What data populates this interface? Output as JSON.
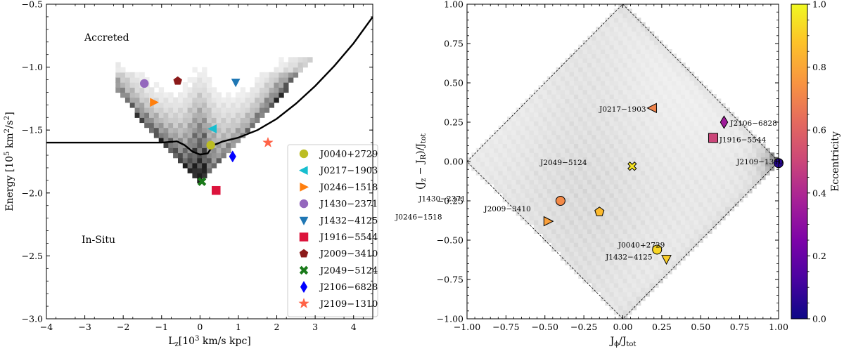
{
  "chart_data": [
    {
      "type": "scatter",
      "xlabel": "L_z[10^3 km/s kpc]",
      "ylabel": "Energy [10^5 km^2/s^2]",
      "xlim": [
        -4,
        4.5
      ],
      "ylim": [
        -3.0,
        -0.5
      ],
      "xticks": [
        "−4",
        "−3",
        "−2",
        "−1",
        "0",
        "1",
        "2",
        "3",
        "4"
      ],
      "yticks": [
        "−3.0",
        "−2.5",
        "−2.0",
        "−1.5",
        "−1.0",
        "−0.5"
      ],
      "regions": [
        "Accreted",
        "In-Situ"
      ],
      "boundary": {
        "x": [
          -4.0,
          -2.0,
          -1.0,
          -0.6,
          -0.4,
          -0.2,
          0.0,
          0.2,
          0.35,
          0.6,
          1.0,
          1.5,
          2.0,
          2.5,
          3.0,
          3.5,
          4.0,
          4.5
        ],
        "y": [
          -1.6,
          -1.6,
          -1.6,
          -1.59,
          -1.62,
          -1.67,
          -1.695,
          -1.685,
          -1.62,
          -1.59,
          -1.56,
          -1.5,
          -1.41,
          -1.29,
          -1.15,
          -0.99,
          -0.81,
          -0.6
        ]
      },
      "stars": [
        {
          "name": "J0040+2729",
          "lz": 0.28,
          "energy": -1.62,
          "marker": "circle",
          "color": "#bcbd22"
        },
        {
          "name": "J0217−1903",
          "lz": 0.33,
          "energy": -1.49,
          "marker": "triangle-left",
          "color": "#17becf"
        },
        {
          "name": "J0246−1518",
          "lz": -1.2,
          "energy": -1.28,
          "marker": "triangle-right",
          "color": "#ff7f0e"
        },
        {
          "name": "J1430−2371",
          "lz": -1.45,
          "energy": -1.13,
          "marker": "circle",
          "color": "#9467bd"
        },
        {
          "name": "J1432−4125",
          "lz": 0.93,
          "energy": -1.12,
          "marker": "triangle-down",
          "color": "#1f77b4"
        },
        {
          "name": "J1916−5544",
          "lz": 0.42,
          "energy": -1.98,
          "marker": "square",
          "color": "#dc143c"
        },
        {
          "name": "J2009−3410",
          "lz": -0.58,
          "energy": -1.11,
          "marker": "pentagon",
          "color": "#8b1a1a"
        },
        {
          "name": "J2049−5124",
          "lz": 0.05,
          "energy": -1.91,
          "marker": "x",
          "color": "#1a7a1a"
        },
        {
          "name": "J2106−6828",
          "lz": 0.85,
          "energy": -1.71,
          "marker": "diamond",
          "color": "#0000ff"
        },
        {
          "name": "J2109−1310",
          "lz": 1.77,
          "energy": -1.6,
          "marker": "star",
          "color": "#ff6347"
        }
      ]
    },
    {
      "type": "scatter",
      "xlabel": "J_phi/J_tot",
      "ylabel": "(J_z − J_R)/J_tot",
      "xlim": [
        -1.0,
        1.0
      ],
      "ylim": [
        -1.0,
        1.0
      ],
      "xticks": [
        "−1.00",
        "−0.75",
        "−0.50",
        "−0.25",
        "0.00",
        "0.25",
        "0.50",
        "0.75",
        "1.00"
      ],
      "yticks": [
        "−1.00",
        "−0.75",
        "−0.50",
        "−0.25",
        "0.00",
        "0.25",
        "0.50",
        "0.75",
        "1.00"
      ],
      "colorbar": {
        "label": "Eccentricity",
        "range": [
          0,
          1
        ],
        "ticks": [
          "0.0",
          "0.2",
          "0.4",
          "0.6",
          "0.8",
          "1.0"
        ]
      },
      "stars": [
        {
          "name": "J0217−1903",
          "jphi": 0.19,
          "jdiff": 0.34,
          "marker": "triangle-left",
          "ecc": 0.7
        },
        {
          "name": "J2106−6828",
          "jphi": 0.65,
          "jdiff": 0.25,
          "marker": "diamond",
          "ecc": 0.35
        },
        {
          "name": "J1916−5544",
          "jphi": 0.58,
          "jdiff": 0.15,
          "marker": "square",
          "ecc": 0.5
        },
        {
          "name": "J2109−1310",
          "jphi": 1.0,
          "jdiff": -0.01,
          "marker": "circle",
          "ecc": 0.05
        },
        {
          "name": "J2049−5124",
          "jphi": 0.06,
          "jdiff": -0.03,
          "marker": "x",
          "ecc": 0.95
        },
        {
          "name": "J1430−2371",
          "jphi": -0.4,
          "jdiff": -0.25,
          "marker": "circle",
          "ecc": 0.72
        },
        {
          "name": "J2009−3410",
          "jphi": -0.15,
          "jdiff": -0.32,
          "marker": "pentagon",
          "ecc": 0.85
        },
        {
          "name": "J0246−1518",
          "jphi": -0.48,
          "jdiff": -0.38,
          "marker": "triangle-right",
          "ecc": 0.78
        },
        {
          "name": "J0040+2729",
          "jphi": 0.22,
          "jdiff": -0.56,
          "marker": "circle",
          "ecc": 0.92
        },
        {
          "name": "J1432−4125",
          "jphi": 0.28,
          "jdiff": -0.62,
          "marker": "triangle-down",
          "ecc": 0.9
        }
      ]
    }
  ]
}
